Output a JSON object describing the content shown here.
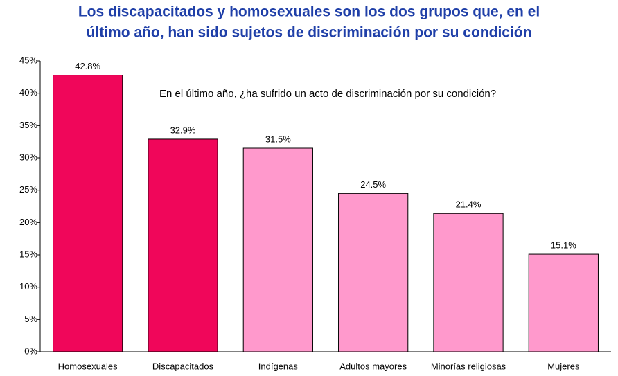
{
  "chart_data": {
    "type": "bar",
    "title": [
      "Los discapacitados y homosexuales son los dos grupos que, en el",
      "último año, han sido sujetos de discriminación por su condición"
    ],
    "annotation": "En el último año, ¿ha sufrido un acto de discriminación por su condición?",
    "categories": [
      "Homosexuales",
      "Discapacitados",
      "Indígenas",
      "Adultos mayores",
      "Minorías religiosas",
      "Mujeres"
    ],
    "values": [
      42.8,
      32.9,
      31.5,
      24.5,
      21.4,
      15.1
    ],
    "value_labels": [
      "42.8%",
      "32.9%",
      "31.5%",
      "24.5%",
      "21.4%",
      "15.1%"
    ],
    "colors": [
      "#f0065a",
      "#f0065a",
      "#ff99cc",
      "#ff99cc",
      "#ff99cc",
      "#ff99cc"
    ],
    "ylim": [
      0,
      45
    ],
    "yticks": [
      {
        "value": 0,
        "label": "0%"
      },
      {
        "value": 5,
        "label": "5%"
      },
      {
        "value": 10,
        "label": "10%"
      },
      {
        "value": 15,
        "label": "15%"
      },
      {
        "value": 20,
        "label": "20%"
      },
      {
        "value": 25,
        "label": "25%"
      },
      {
        "value": 30,
        "label": "30%"
      },
      {
        "value": 35,
        "label": "35%"
      },
      {
        "value": 40,
        "label": "40%"
      },
      {
        "value": 45,
        "label": "45%"
      }
    ],
    "grid": false
  }
}
